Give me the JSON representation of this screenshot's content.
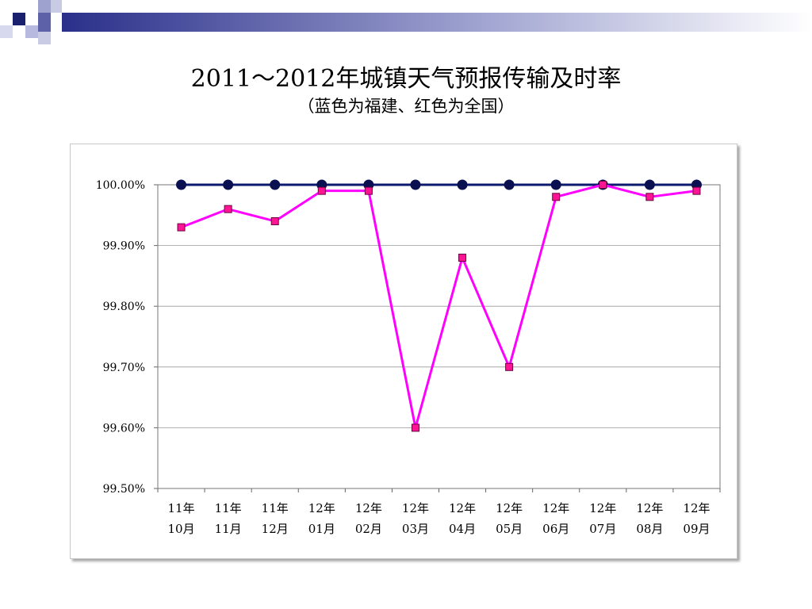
{
  "slide": {
    "title": "2011～2012年城镇天气预报传输及时率",
    "subtitle": "（蓝色为福建、红色为全国）"
  },
  "colors": {
    "fujian_line": "#0B1A6E",
    "national_line": "#FF00FF",
    "national_marker_fill": "#FF1493",
    "grid": "#999999"
  },
  "chart_data": {
    "type": "line",
    "categories": [
      [
        "11年",
        "10月"
      ],
      [
        "11年",
        "11月"
      ],
      [
        "11年",
        "12月"
      ],
      [
        "12年",
        "01月"
      ],
      [
        "12年",
        "02月"
      ],
      [
        "12年",
        "03月"
      ],
      [
        "12年",
        "04月"
      ],
      [
        "12年",
        "05月"
      ],
      [
        "12年",
        "06月"
      ],
      [
        "12年",
        "07月"
      ],
      [
        "12年",
        "08月"
      ],
      [
        "12年",
        "09月"
      ]
    ],
    "ylim": [
      99.5,
      100.0
    ],
    "yticks": [
      "100.00%",
      "99.90%",
      "99.80%",
      "99.70%",
      "99.60%",
      "99.50%"
    ],
    "ytick_values": [
      100.0,
      99.9,
      99.8,
      99.7,
      99.6,
      99.5
    ],
    "grid": true,
    "legend": "none",
    "series": [
      {
        "color_key": "fujian_line",
        "marker": "circle",
        "values": [
          100.0,
          100.0,
          100.0,
          100.0,
          100.0,
          100.0,
          100.0,
          100.0,
          100.0,
          100.0,
          100.0,
          100.0
        ]
      },
      {
        "color_key": "national_line",
        "marker": "square",
        "values": [
          99.93,
          99.96,
          99.94,
          99.99,
          99.99,
          99.6,
          99.88,
          99.7,
          99.98,
          100.0,
          99.98,
          99.99
        ]
      }
    ]
  }
}
